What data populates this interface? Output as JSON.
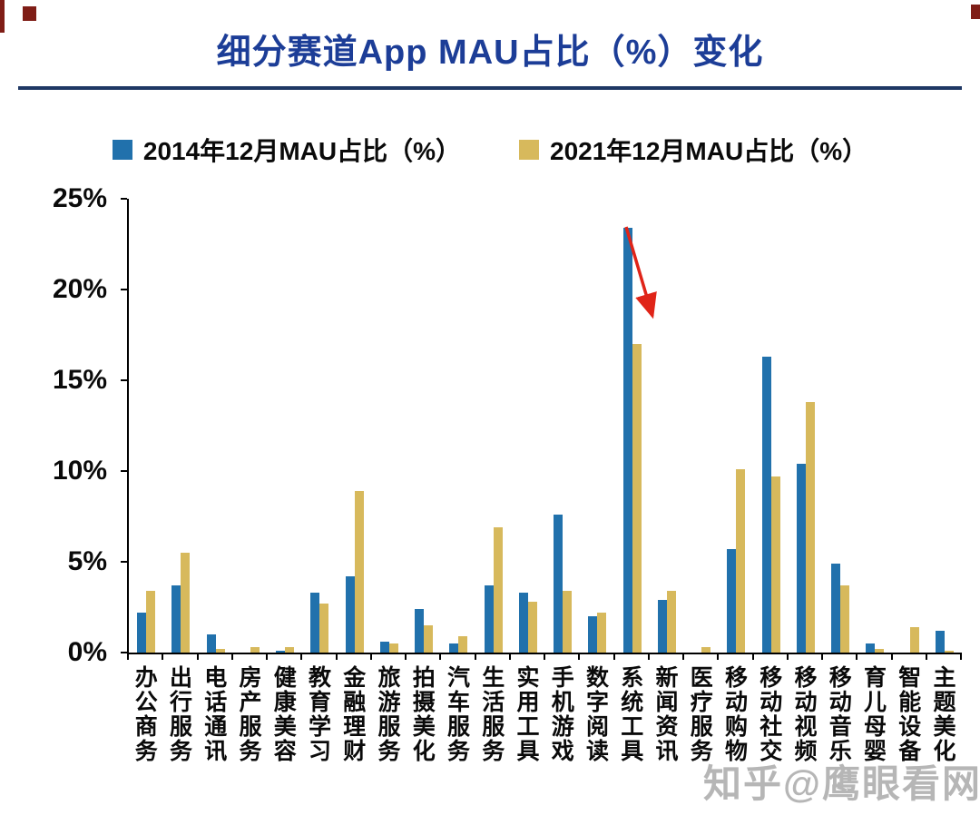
{
  "page": {
    "watermark": "知乎@鹰眼看网"
  },
  "colors": {
    "title": "#1c3d97",
    "rule": "#1f3864",
    "arrow": "#e02418",
    "watermark": "#8a8a8a",
    "corner_marks": "#7f1d16",
    "axis": "#000000"
  },
  "chart_data": {
    "type": "bar",
    "title": "细分赛道App MAU占比（%）变化",
    "categories": [
      "办公商务",
      "出行服务",
      "电话通讯",
      "房产服务",
      "健康美容",
      "教育学习",
      "金融理财",
      "旅游服务",
      "拍摄美化",
      "汽车服务",
      "生活服务",
      "实用工具",
      "手机游戏",
      "数字阅读",
      "系统工具",
      "新闻资讯",
      "医疗服务",
      "移动购物",
      "移动社交",
      "移动视频",
      "移动音乐",
      "育儿母婴",
      "智能设备",
      "主题美化"
    ],
    "series": [
      {
        "name": "2014年12月MAU占比（%）",
        "color": "#2171ac",
        "values": [
          2.2,
          3.7,
          1.0,
          0,
          0.1,
          3.3,
          4.2,
          0.6,
          2.4,
          0.5,
          3.7,
          3.3,
          7.6,
          2.0,
          23.4,
          2.9,
          0,
          5.7,
          16.3,
          10.4,
          4.9,
          0.5,
          0,
          1.2
        ]
      },
      {
        "name": "2021年12月MAU占比（%）",
        "color": "#d7b95c",
        "values": [
          3.4,
          5.5,
          0.2,
          0.3,
          0.3,
          2.7,
          8.9,
          0.5,
          1.5,
          0.9,
          6.9,
          2.8,
          3.4,
          2.2,
          17.0,
          3.4,
          0.3,
          10.1,
          9.7,
          13.8,
          3.7,
          0.2,
          1.4,
          0.1
        ]
      }
    ],
    "ylim": [
      0,
      25
    ],
    "yticks": [
      "0%",
      "5%",
      "10%",
      "15%",
      "20%",
      "25%"
    ],
    "xlabel": "",
    "ylabel": "",
    "grid": false,
    "legend_position": "top",
    "annotations": [
      {
        "type": "arrow",
        "target_category": "系统工具"
      }
    ]
  }
}
